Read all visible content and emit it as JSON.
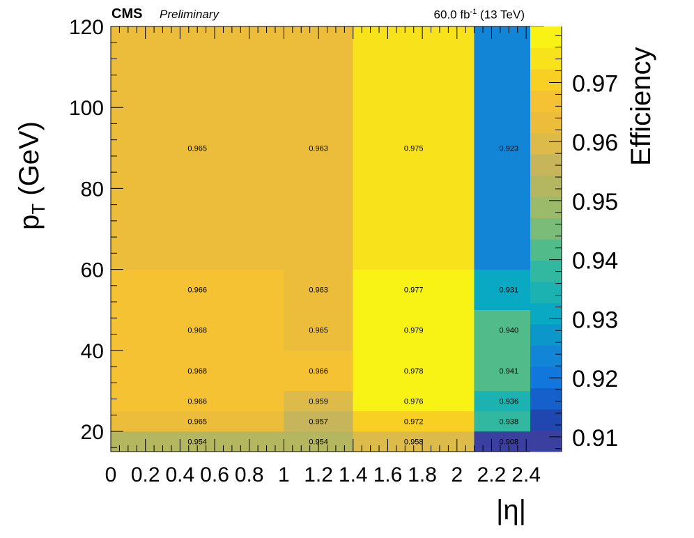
{
  "header": {
    "experiment": "CMS",
    "status": "Preliminary",
    "lumi": "60.0 fb",
    "lumi_exp": "-1",
    "energy": "(13 TeV)"
  },
  "chart_data": {
    "type": "heatmap",
    "xlabel": "|η|",
    "ylabel": "p",
    "ylabel_sub": "T",
    "ylabel_unit": " (GeV)",
    "zlabel": "Efficiency",
    "x_edges": [
      0,
      1.0,
      1.4,
      2.1,
      2.5
    ],
    "y_edges": [
      15,
      20,
      25,
      30,
      40,
      50,
      60,
      120
    ],
    "xlim": [
      0,
      2.5
    ],
    "ylim": [
      15,
      120
    ],
    "zlim": [
      0.9075,
      0.9795
    ],
    "x_ticks": [
      0,
      0.2,
      0.4,
      0.6,
      0.8,
      1,
      1.2,
      1.4,
      1.6,
      1.8,
      2,
      2.2,
      2.4
    ],
    "x_tick_labels": [
      "0",
      "0.2",
      "0.4",
      "0.6",
      "0.8",
      "1",
      "1.2",
      "1.4",
      "1.6",
      "1.8",
      "2",
      "2.2",
      "2.4"
    ],
    "y_ticks": [
      20,
      40,
      60,
      80,
      100,
      120
    ],
    "y_tick_labels": [
      "20",
      "40",
      "60",
      "80",
      "100",
      "120"
    ],
    "z_ticks": [
      0.91,
      0.92,
      0.93,
      0.94,
      0.95,
      0.96,
      0.97
    ],
    "z_tick_labels": [
      "0.91",
      "0.92",
      "0.93",
      "0.94",
      "0.95",
      "0.96",
      "0.97"
    ],
    "values": [
      [
        0.954,
        0.954,
        0.958,
        0.908
      ],
      [
        0.965,
        0.957,
        0.972,
        0.938
      ],
      [
        0.966,
        0.959,
        0.976,
        0.936
      ],
      [
        0.968,
        0.966,
        0.978,
        0.941
      ],
      [
        0.968,
        0.965,
        0.979,
        0.94
      ],
      [
        0.966,
        0.963,
        0.977,
        0.931
      ],
      [
        0.965,
        0.963,
        0.975,
        0.923
      ]
    ],
    "value_labels": [
      [
        "0.954",
        "0.954",
        "0.958",
        "0.908"
      ],
      [
        "0.965",
        "0.957",
        "0.972",
        "0.938"
      ],
      [
        "0.966",
        "0.959",
        "0.976",
        "0.936"
      ],
      [
        "0.968",
        "0.966",
        "0.978",
        "0.941"
      ],
      [
        "0.968",
        "0.965",
        "0.979",
        "0.940"
      ],
      [
        "0.966",
        "0.963",
        "0.977",
        "0.931"
      ],
      [
        "0.965",
        "0.963",
        "0.975",
        "0.923"
      ]
    ],
    "palette": [
      "#3a3fa0",
      "#2047b0",
      "#1660cc",
      "#1177dd",
      "#1385d6",
      "#0c97ca",
      "#09a9c4",
      "#1db2b2",
      "#32b8a0",
      "#52bb8a",
      "#7bbd78",
      "#9bbb6b",
      "#b4b660",
      "#c7b55b",
      "#dcbb4a",
      "#ecbd3b",
      "#f4c232",
      "#f8d024",
      "#f7e21c",
      "#f8f314"
    ]
  }
}
